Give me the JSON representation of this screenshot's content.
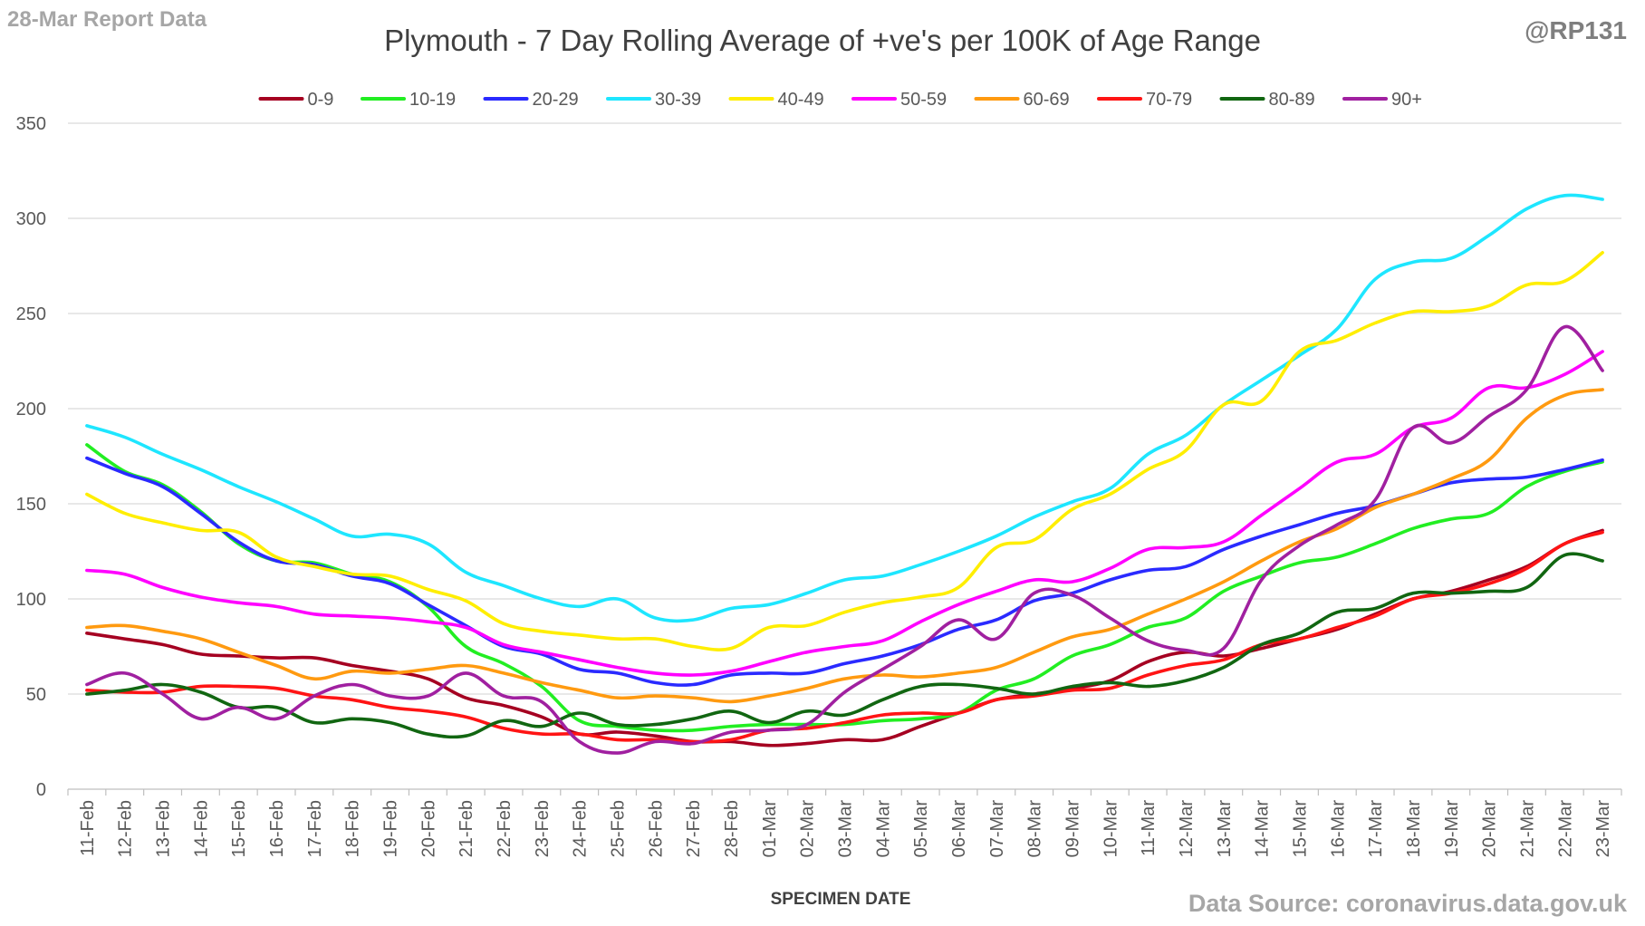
{
  "corner_left": "28-Mar Report Data",
  "corner_right": "@RP131",
  "source": "Data Source: coronavirus.data.gov.uk",
  "chart_data": {
    "type": "line",
    "title": "Plymouth - 7 Day Rolling Average of +ve's per 100K of Age Range",
    "xlabel": "SPECIMEN DATE",
    "ylabel": "",
    "ylim": [
      0,
      350
    ],
    "yticks": [
      0,
      50,
      100,
      150,
      200,
      250,
      300,
      350
    ],
    "grid": true,
    "legend_position": "top",
    "categories": [
      "11-Feb",
      "12-Feb",
      "13-Feb",
      "14-Feb",
      "15-Feb",
      "16-Feb",
      "17-Feb",
      "18-Feb",
      "19-Feb",
      "20-Feb",
      "21-Feb",
      "22-Feb",
      "23-Feb",
      "24-Feb",
      "25-Feb",
      "26-Feb",
      "27-Feb",
      "28-Feb",
      "01-Mar",
      "02-Mar",
      "03-Mar",
      "04-Mar",
      "05-Mar",
      "06-Mar",
      "07-Mar",
      "08-Mar",
      "09-Mar",
      "10-Mar",
      "11-Mar",
      "12-Mar",
      "13-Mar",
      "14-Mar",
      "15-Mar",
      "16-Mar",
      "17-Mar",
      "18-Mar",
      "19-Mar",
      "20-Mar",
      "21-Mar",
      "22-Mar",
      "23-Mar"
    ],
    "series": [
      {
        "name": "0-9",
        "color": "#a50021",
        "values": [
          82,
          79,
          76,
          71,
          70,
          69,
          69,
          65,
          62,
          58,
          48,
          44,
          38,
          29,
          30,
          28,
          25,
          25,
          23,
          24,
          26,
          26,
          33,
          40,
          47,
          50,
          53,
          57,
          67,
          72,
          70,
          74,
          79,
          84,
          92,
          100,
          104,
          110,
          117,
          129,
          136
        ]
      },
      {
        "name": "10-19",
        "color": "#22ee22",
        "values": [
          181,
          167,
          160,
          146,
          129,
          120,
          119,
          113,
          109,
          96,
          75,
          66,
          54,
          36,
          33,
          31,
          31,
          33,
          34,
          34,
          34,
          36,
          37,
          40,
          52,
          58,
          70,
          76,
          85,
          90,
          104,
          112,
          119,
          122,
          129,
          137,
          142,
          145,
          159,
          167,
          172
        ]
      },
      {
        "name": "20-29",
        "color": "#2a2aff",
        "values": [
          174,
          166,
          159,
          145,
          130,
          120,
          118,
          112,
          108,
          97,
          86,
          75,
          71,
          63,
          61,
          56,
          55,
          60,
          61,
          61,
          66,
          70,
          76,
          84,
          89,
          99,
          103,
          110,
          115,
          117,
          126,
          133,
          139,
          145,
          149,
          155,
          161,
          163,
          164,
          168,
          173
        ]
      },
      {
        "name": "30-39",
        "color": "#1ee6ff",
        "values": [
          191,
          185,
          176,
          168,
          159,
          151,
          142,
          133,
          134,
          129,
          114,
          107,
          100,
          96,
          100,
          90,
          89,
          95,
          97,
          103,
          110,
          112,
          118,
          125,
          133,
          143,
          151,
          158,
          176,
          186,
          202,
          215,
          228,
          242,
          268,
          277,
          279,
          291,
          305,
          312,
          310
        ]
      },
      {
        "name": "40-49",
        "color": "#ffee00",
        "values": [
          155,
          145,
          140,
          136,
          135,
          122,
          117,
          113,
          112,
          105,
          99,
          87,
          83,
          81,
          79,
          79,
          75,
          74,
          85,
          86,
          93,
          98,
          101,
          106,
          127,
          131,
          147,
          155,
          168,
          178,
          202,
          204,
          230,
          236,
          245,
          251,
          251,
          254,
          265,
          267,
          282
        ]
      },
      {
        "name": "50-59",
        "color": "#ff00ff",
        "values": [
          115,
          113,
          106,
          101,
          98,
          96,
          92,
          91,
          90,
          88,
          85,
          76,
          72,
          68,
          64,
          61,
          60,
          62,
          67,
          72,
          75,
          78,
          88,
          97,
          104,
          110,
          109,
          116,
          126,
          127,
          130,
          144,
          158,
          172,
          176,
          190,
          195,
          211,
          211,
          218,
          230
        ]
      },
      {
        "name": "60-69",
        "color": "#ff9a10",
        "values": [
          85,
          86,
          83,
          79,
          72,
          65,
          58,
          62,
          61,
          63,
          65,
          61,
          56,
          52,
          48,
          49,
          48,
          46,
          49,
          53,
          58,
          60,
          59,
          61,
          64,
          72,
          80,
          84,
          92,
          100,
          109,
          120,
          130,
          137,
          148,
          155,
          163,
          173,
          195,
          207,
          210
        ]
      },
      {
        "name": "70-79",
        "color": "#ff1414",
        "values": [
          52,
          51,
          51,
          54,
          54,
          53,
          49,
          47,
          43,
          41,
          38,
          32,
          29,
          29,
          26,
          26,
          25,
          26,
          31,
          32,
          35,
          39,
          40,
          40,
          47,
          49,
          52,
          53,
          60,
          65,
          68,
          76,
          79,
          85,
          91,
          100,
          103,
          108,
          116,
          129,
          135
        ]
      },
      {
        "name": "80-89",
        "color": "#116611",
        "values": [
          50,
          52,
          55,
          51,
          43,
          43,
          35,
          37,
          35,
          29,
          28,
          36,
          33,
          40,
          34,
          34,
          37,
          41,
          35,
          41,
          39,
          47,
          54,
          55,
          53,
          50,
          54,
          56,
          54,
          57,
          64,
          76,
          82,
          93,
          95,
          103,
          103,
          104,
          106,
          123,
          120
        ]
      },
      {
        "name": "90+",
        "color": "#a020a0",
        "values": [
          55,
          61,
          50,
          37,
          43,
          37,
          49,
          55,
          49,
          49,
          61,
          49,
          46,
          25,
          19,
          25,
          24,
          30,
          31,
          34,
          51,
          63,
          75,
          89,
          79,
          103,
          102,
          90,
          78,
          73,
          74,
          110,
          128,
          139,
          152,
          190,
          182,
          196,
          210,
          243,
          220
        ]
      }
    ]
  }
}
